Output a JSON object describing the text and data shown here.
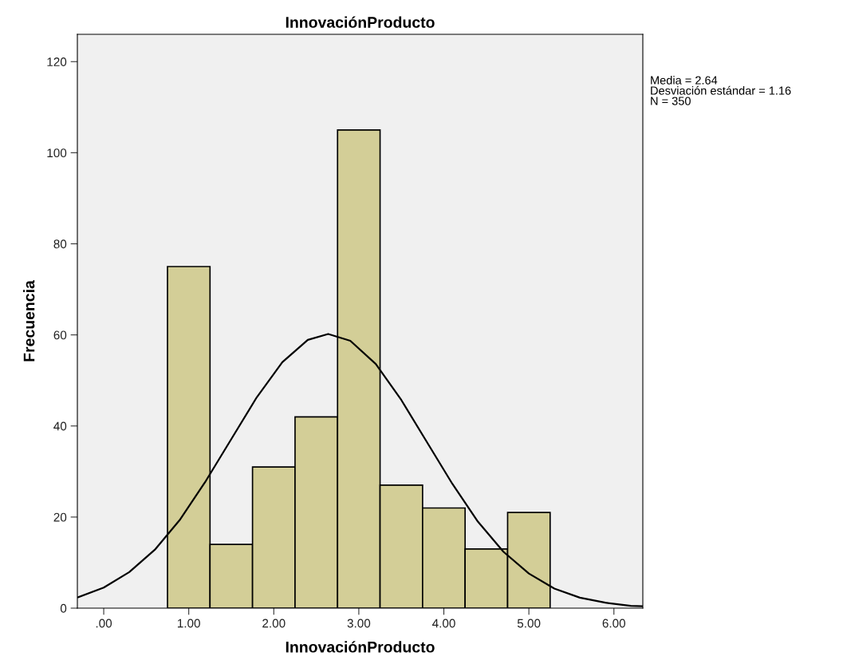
{
  "chart_data": {
    "type": "histogram",
    "title": "InnovaciónProducto",
    "xlabel": "InnovaciónProducto",
    "ylabel": "Frecuencia",
    "annotations": [
      "Media = 2.64",
      "Desviación estándar = 1.16",
      "N = 350"
    ],
    "series": [
      {
        "bins": [
          0.75,
          1.25,
          1.75,
          2.25,
          2.75,
          3.25,
          3.75,
          4.25,
          4.75,
          5.25
        ],
        "values": [
          75,
          14,
          31,
          42,
          105,
          27,
          22,
          13,
          21
        ],
        "color": "#d3ce97"
      },
      {
        "type": "line",
        "x": [
          -0.3,
          0.0,
          0.3,
          0.6,
          0.9,
          1.2,
          1.5,
          1.8,
          2.1,
          2.4,
          2.64,
          2.9,
          3.2,
          3.5,
          3.8,
          4.1,
          4.4,
          4.7,
          5.0,
          5.3,
          5.6,
          5.9,
          6.2,
          6.34
        ],
        "values": [
          2.4,
          4.5,
          7.9,
          12.8,
          19.5,
          27.9,
          37.1,
          46.3,
          54.0,
          58.9,
          60.2,
          58.7,
          53.6,
          45.7,
          36.5,
          27.3,
          19.0,
          12.4,
          7.6,
          4.3,
          2.3,
          1.2,
          0.5,
          0.4
        ],
        "color": "#000000"
      }
    ],
    "xlim": [
      -0.31,
      6.34
    ],
    "ylim": [
      0,
      126
    ],
    "xticks": [
      {
        "value": 0,
        "label": ".00"
      },
      {
        "value": 1,
        "label": "1.00"
      },
      {
        "value": 2,
        "label": "2.00"
      },
      {
        "value": 3,
        "label": "3.00"
      },
      {
        "value": 4,
        "label": "4.00"
      },
      {
        "value": 5,
        "label": "5.00"
      },
      {
        "value": 6,
        "label": "6.00"
      }
    ],
    "yticks": [
      0,
      20,
      40,
      60,
      80,
      100,
      120
    ],
    "grid": false
  }
}
